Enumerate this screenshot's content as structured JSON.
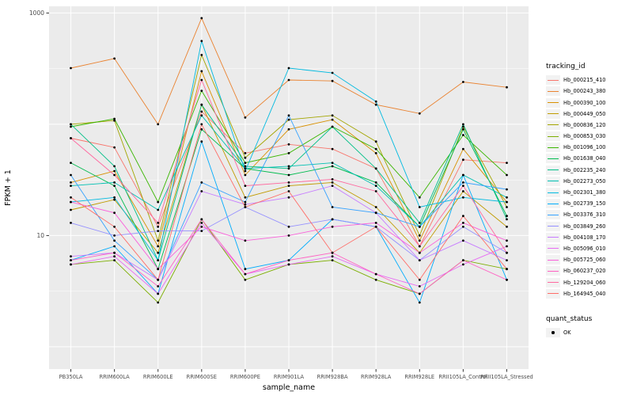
{
  "chart_data": {
    "type": "line",
    "title": "",
    "xlabel": "sample_name",
    "ylabel": "FPKM + 1",
    "y_scale": "log10",
    "ylim_log10": [
      -0.2,
      3.06
    ],
    "grid": true,
    "panel_bg": "#EBEBEB",
    "grid_color": "#FFFFFF",
    "point_color": "#000000",
    "y_ticks": [
      {
        "label": "1000",
        "value": 1000
      },
      {
        "label": "10",
        "value": 10
      }
    ],
    "categories": [
      "PB350LA",
      "RRIM600LA",
      "RRIM600LE",
      "RRIM600SE",
      "RRIM600PE",
      "RRIM901LA",
      "RRIM928BA",
      "RRIM928LA",
      "RRIM928LE",
      "RRII105LA_Control",
      "RRII105LA_Stressed"
    ],
    "legend_title": "tracking_id",
    "legend_position": "right",
    "quant_legend": {
      "title": "quant_status",
      "items": [
        "OK"
      ]
    },
    "series": [
      {
        "name": "Hb_000215_410",
        "color": "#F8766D",
        "values": [
          75,
          62,
          12,
          130,
          55,
          66,
          60,
          40,
          8,
          48,
          45
        ]
      },
      {
        "name": "Hb_000243_380",
        "color": "#EA8331",
        "values": [
          320,
          390,
          100,
          900,
          115,
          250,
          245,
          150,
          125,
          240,
          215
        ]
      },
      {
        "name": "Hb_000390_100",
        "color": "#D89000",
        "values": [
          30,
          38,
          8,
          300,
          35,
          90,
          110,
          55,
          9,
          60,
          20
        ]
      },
      {
        "name": "Hb_000449_050",
        "color": "#C09B00",
        "values": [
          17,
          21,
          7,
          150,
          22,
          28,
          30,
          18,
          7,
          25,
          12
        ]
      },
      {
        "name": "Hb_000836_120",
        "color": "#A3A500",
        "values": [
          100,
          108,
          9,
          420,
          50,
          110,
          120,
          70,
          10,
          95,
          18
        ]
      },
      {
        "name": "Hb_000853_030",
        "color": "#7CAE00",
        "values": [
          5.5,
          6,
          2.5,
          14,
          4,
          5.5,
          6,
          4,
          3,
          6,
          5
        ]
      },
      {
        "name": "Hb_001096_100",
        "color": "#39B600",
        "values": [
          95,
          112,
          20,
          200,
          45,
          55,
          95,
          60,
          22,
          80,
          35
        ]
      },
      {
        "name": "Hb_001638_040",
        "color": "#00BB4E",
        "values": [
          45,
          28,
          5,
          90,
          40,
          35,
          42,
          30,
          12,
          90,
          15
        ]
      },
      {
        "name": "Hb_002235_240",
        "color": "#00C087",
        "values": [
          100,
          42,
          6,
          150,
          42,
          40,
          95,
          40,
          13,
          100,
          14
        ]
      },
      {
        "name": "Hb_002273_050",
        "color": "#00C0B2",
        "values": [
          28,
          30,
          17,
          120,
          40,
          42,
          45,
          28,
          12,
          35,
          22
        ]
      },
      {
        "name": "Hb_002301_380",
        "color": "#00BAE0",
        "values": [
          20,
          22,
          6,
          560,
          38,
          320,
          290,
          160,
          18,
          22,
          20
        ]
      },
      {
        "name": "Hb_002739_150",
        "color": "#00ACFC",
        "values": [
          6,
          8,
          3,
          70,
          5,
          6,
          14,
          12,
          2.5,
          35,
          4
        ]
      },
      {
        "name": "Hb_003376_310",
        "color": "#35A2FF",
        "values": [
          35,
          9,
          4,
          30,
          20,
          120,
          18,
          16,
          12,
          30,
          26
        ]
      },
      {
        "name": "Hb_003849_260",
        "color": "#9590FF",
        "values": [
          13,
          10,
          11,
          11,
          18,
          12,
          14,
          12,
          6,
          12,
          7
        ]
      },
      {
        "name": "Hb_004108_170",
        "color": "#C77CFF",
        "values": [
          6.5,
          7,
          4,
          25,
          19,
          22,
          28,
          16,
          6,
          9,
          6
        ]
      },
      {
        "name": "Hb_005096_010",
        "color": "#E76BF3",
        "values": [
          5.5,
          6.5,
          3,
          13,
          4.5,
          5.5,
          6.5,
          4.5,
          3.5,
          5.5,
          8
        ]
      },
      {
        "name": "Hb_005725_060",
        "color": "#FA62DB",
        "values": [
          20,
          16,
          5,
          12,
          9,
          10,
          12,
          13,
          7,
          13,
          9
        ]
      },
      {
        "name": "Hb_060237_020",
        "color": "#FF61C3",
        "values": [
          6,
          7,
          3.5,
          14,
          4.5,
          6,
          7,
          4.5,
          3,
          6,
          4
        ]
      },
      {
        "name": "Hb_129204_060",
        "color": "#FF689F",
        "values": [
          75,
          35,
          13,
          250,
          28,
          30,
          32,
          25,
          8,
          28,
          7
        ]
      },
      {
        "name": "Hb_164945_040",
        "color": "#FF6C67",
        "values": [
          22,
          12,
          4,
          100,
          18,
          25,
          7,
          12,
          4,
          15,
          5
        ]
      }
    ]
  }
}
